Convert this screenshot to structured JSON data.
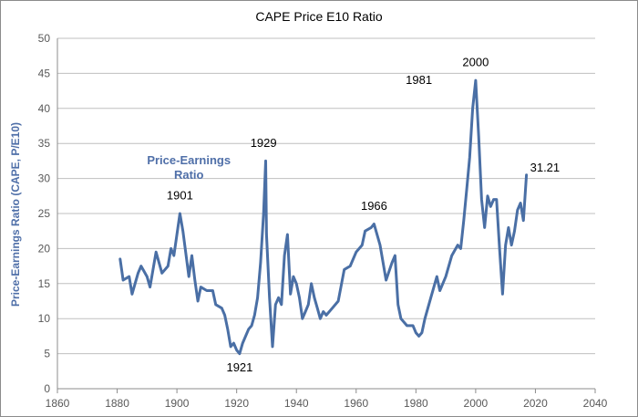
{
  "chart_data": {
    "type": "line",
    "title": "CAPE Price E10 Ratio",
    "xlabel": "",
    "ylabel": "Price-Earnings Ratio (CAPE, P/E10)",
    "xlim": [
      1860,
      2040
    ],
    "ylim": [
      0,
      50
    ],
    "xticks": [
      "1860",
      "1880",
      "1900",
      "1920",
      "1940",
      "1960",
      "1980",
      "2000",
      "2020",
      "2040"
    ],
    "yticks": [
      "0",
      "5",
      "10",
      "15",
      "20",
      "25",
      "30",
      "35",
      "40",
      "45",
      "50"
    ],
    "grid": "horizontal",
    "line_color": "#4a6fa5",
    "series": [
      {
        "name": "Price-Earnings Ratio",
        "x": [
          1881,
          1882,
          1884,
          1885,
          1887,
          1888,
          1890,
          1891,
          1893,
          1895,
          1897,
          1898,
          1899,
          1900,
          1901,
          1902,
          1904,
          1905,
          1906,
          1907,
          1908,
          1910,
          1912,
          1913,
          1915,
          1916,
          1917,
          1918,
          1919,
          1920,
          1921,
          1922,
          1923,
          1924,
          1925,
          1926,
          1927,
          1928,
          1929,
          1929.7,
          1930,
          1931,
          1932,
          1933,
          1934,
          1935,
          1936,
          1937,
          1938,
          1939,
          1940,
          1941,
          1942,
          1943,
          1944,
          1945,
          1946,
          1947,
          1948,
          1949,
          1950,
          1952,
          1954,
          1956,
          1958,
          1960,
          1962,
          1963,
          1965,
          1966,
          1968,
          1970,
          1972,
          1973,
          1974,
          1975,
          1977,
          1979,
          1980,
          1981,
          1982,
          1983,
          1985,
          1987,
          1988,
          1990,
          1992,
          1994,
          1995,
          1996,
          1997,
          1998,
          1999,
          2000,
          2001,
          2002,
          2003,
          2004,
          2005,
          2006,
          2007,
          2008,
          2009,
          2010,
          2011,
          2012,
          2013,
          2014,
          2015,
          2016,
          2017
        ],
        "values": [
          18.5,
          15.5,
          16.0,
          13.5,
          16.5,
          17.5,
          16.0,
          14.5,
          19.5,
          16.5,
          17.5,
          20.0,
          19.0,
          22.0,
          25.0,
          22.5,
          16.0,
          19.0,
          15.5,
          12.5,
          14.5,
          14.0,
          14.0,
          12.0,
          11.5,
          10.5,
          8.5,
          6.0,
          6.5,
          5.5,
          5.0,
          6.5,
          7.5,
          8.5,
          9.0,
          10.5,
          13.0,
          18.0,
          25.0,
          32.5,
          22.0,
          13.0,
          6.0,
          12.0,
          13.0,
          12.0,
          19.0,
          22.0,
          13.5,
          16.0,
          15.0,
          13.0,
          10.0,
          11.0,
          12.0,
          15.0,
          13.0,
          11.5,
          10.0,
          11.0,
          10.5,
          11.5,
          12.5,
          17.0,
          17.5,
          19.5,
          20.5,
          22.5,
          23.0,
          23.5,
          20.5,
          15.5,
          18.0,
          19.0,
          12.0,
          10.0,
          9.0,
          9.0,
          8.0,
          7.5,
          8.0,
          10.0,
          13.0,
          16.0,
          14.0,
          16.0,
          19.0,
          20.5,
          20.0,
          24.0,
          28.5,
          33.0,
          40.0,
          44.0,
          36.0,
          27.0,
          23.0,
          27.5,
          26.0,
          27.0,
          27.0,
          20.0,
          13.5,
          20.5,
          23.0,
          20.5,
          22.5,
          25.5,
          26.5,
          24.0,
          30.5
        ]
      }
    ],
    "annotations": [
      {
        "text": "1901",
        "x": 1901,
        "y": 27
      },
      {
        "text": "1921",
        "x": 1921,
        "y": 2.5
      },
      {
        "text": "1929",
        "x": 1929,
        "y": 34.5
      },
      {
        "text": "1966",
        "x": 1966,
        "y": 25.5
      },
      {
        "text": "1981",
        "x": 1981,
        "y": 43.5
      },
      {
        "text": "2000",
        "x": 2000,
        "y": 46
      },
      {
        "text": "31.21",
        "x": 2017,
        "y": 31
      }
    ],
    "series_label": {
      "text_line1": "Price-Earnings",
      "text_line2": "Ratio",
      "x": 1904,
      "y": 31
    }
  }
}
